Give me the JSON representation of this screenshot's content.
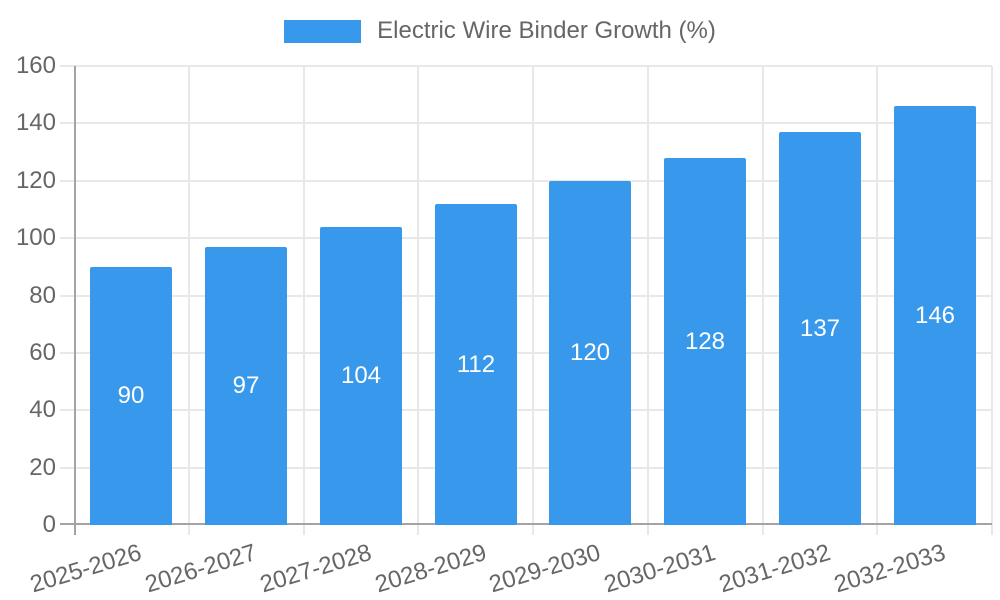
{
  "legend": {
    "label": "Electric Wire Binder Growth (%)"
  },
  "colors": {
    "bar": "#3899ec",
    "grid": "#e8e8e8",
    "axis": "#a3a3a3",
    "tick_text": "#666666",
    "value_text": "#ffffff"
  },
  "chart_data": {
    "type": "bar",
    "title": "",
    "legend_entries": [
      "Electric Wire Binder Growth (%)"
    ],
    "legend_position": "top",
    "categories": [
      "2025-2026",
      "2026-2027",
      "2027-2028",
      "2028-2029",
      "2029-2030",
      "2030-2031",
      "2031-2032",
      "2032-2033"
    ],
    "values": [
      90,
      97,
      104,
      112,
      120,
      128,
      137,
      146
    ],
    "value_labels_position": "center",
    "xlabel": "",
    "ylabel": "",
    "ylim": [
      0,
      160
    ],
    "yticks": [
      0,
      20,
      40,
      60,
      80,
      100,
      120,
      140,
      160
    ],
    "grid": "both",
    "x_tick_rotation_deg": -17
  }
}
